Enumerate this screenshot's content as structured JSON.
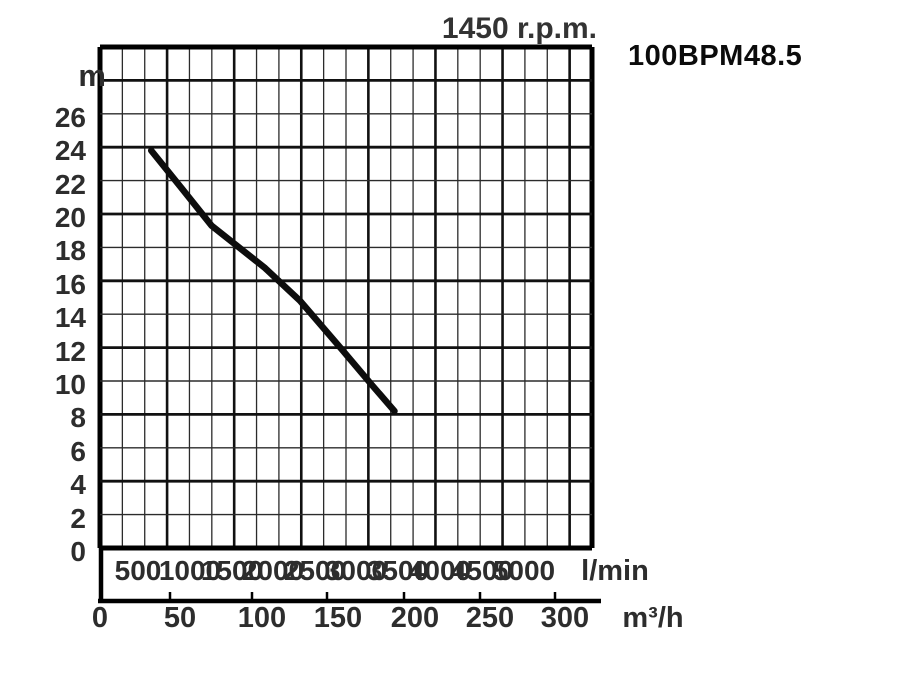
{
  "page": {
    "background": "#ffffff"
  },
  "chart_data": {
    "type": "line",
    "title": "1450 r.p.m.",
    "model": "100BPM48.5",
    "ylabel": "m",
    "xlabel_primary": "l/min",
    "xlabel_secondary": "m³/h",
    "y_tick_labels": [
      "26",
      "24",
      "22",
      "20",
      "18",
      "16",
      "14",
      "12",
      "10",
      "8",
      "6",
      "4",
      "2",
      "0"
    ],
    "x_lmin_tick_labels": [
      "500",
      "1000",
      "1500",
      "2000",
      "2500",
      "3000",
      "3500",
      "4000",
      "4500",
      "5000"
    ],
    "x_m3h_tick_labels": [
      "0",
      "50",
      "100",
      "150",
      "200",
      "250",
      "300"
    ],
    "ylim_m": [
      0,
      30
    ],
    "xlim_m3h": [
      0,
      330
    ],
    "grid": {
      "visible": true,
      "minor_step_m": 2,
      "major_step_m": 4,
      "columns": 22,
      "major_column_every": 3
    },
    "legend": "none",
    "series": [
      {
        "name": "head-flow-curve",
        "flow_m3h": [
          33,
          53,
          72,
          87,
          106,
          129,
          155,
          175,
          190
        ],
        "flow_lmin": [
          550,
          880,
          1200,
          1450,
          1770,
          2150,
          2580,
          2920,
          3170
        ],
        "head_m": [
          23.8,
          21.5,
          19.3,
          18.2,
          16.8,
          14.8,
          12.0,
          9.8,
          8.2
        ],
        "color": "#0d0d0d"
      }
    ],
    "colors": {
      "grid_minor": "#2b2b2b",
      "grid_major": "#111111",
      "border": "#000000",
      "curve": "#0d0d0d",
      "text": "#2d2d2d"
    }
  }
}
